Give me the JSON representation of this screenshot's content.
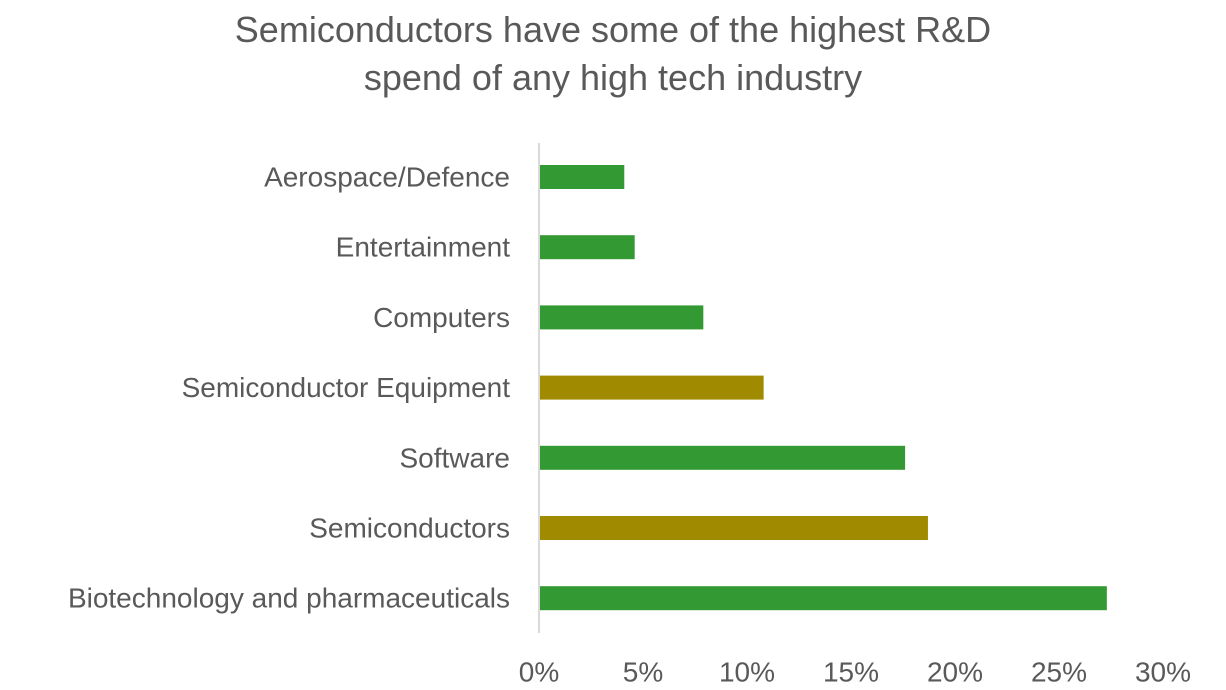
{
  "chart_data": {
    "type": "bar",
    "orientation": "horizontal",
    "title_lines": [
      "Semiconductors have some of the highest R&D",
      "spend of any high tech industry"
    ],
    "xlabel": "",
    "ylabel": "",
    "categories": [
      "Aerospace/Defence",
      "Entertainment",
      "Computers",
      "Semiconductor Equipment",
      "Software",
      "Semiconductors",
      "Biotechnology and pharmaceuticals"
    ],
    "values": [
      4.1,
      4.6,
      7.9,
      10.8,
      17.6,
      18.7,
      27.3
    ],
    "value_unit": "%",
    "bar_colors": [
      "#339933",
      "#339933",
      "#339933",
      "#a08a00",
      "#339933",
      "#a08a00",
      "#339933"
    ],
    "xlim": [
      0,
      30
    ],
    "x_ticks": [
      0,
      5,
      10,
      15,
      20,
      25,
      30
    ],
    "x_tick_labels": [
      "0%",
      "5%",
      "10%",
      "15%",
      "20%",
      "25%",
      "30%"
    ],
    "grid": false,
    "legend": "none",
    "colors": {
      "green": "#339933",
      "gold": "#a08a00",
      "text": "#595959",
      "axis": "#d9d9d9"
    }
  }
}
